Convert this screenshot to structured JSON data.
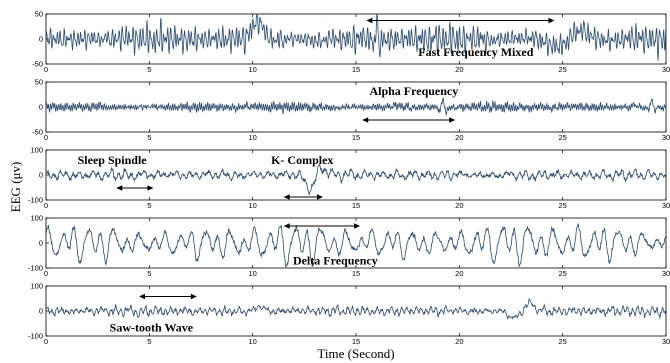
{
  "chart_data": {
    "type": "line",
    "xlabel": "Time (Second)",
    "ylabel": "EEG (μv)",
    "line_color": "#2a4a6e",
    "x_ticks": [
      0,
      5,
      10,
      15,
      20,
      25,
      30
    ],
    "xlim": [
      0,
      30
    ],
    "panels": [
      {
        "id": "fast",
        "ylim": [
          -50,
          50
        ],
        "y_ticks": [
          "50",
          "0",
          "-50"
        ],
        "annotations": [
          {
            "label": "Fast Frequency Mixed",
            "x": 20.8,
            "y": -26,
            "arrow": [
              15.5,
              24.6
            ],
            "arrow_y": 37
          }
        ],
        "signal": {
          "amp": 16,
          "components": [
            [
              6.0,
              0.0,
              1.0
            ],
            [
              9.0,
              1.3,
              0.7
            ],
            [
              4.3,
              2.1,
              0.5
            ]
          ],
          "noise": 0.35,
          "seed": 3,
          "events": [
            {
              "t": 10.2,
              "w": 0.35,
              "a": 38
            },
            {
              "t": 16.0,
              "w": 0.2,
              "a": 30
            }
          ],
          "slow": {
            "t": 25.3,
            "w": 1.3,
            "a": 22
          }
        }
      },
      {
        "id": "alpha",
        "ylim": [
          -50,
          50
        ],
        "y_ticks": [
          "50",
          "0",
          "-50"
        ],
        "annotations": [
          {
            "label": "Alpha Frequency",
            "x": 17.8,
            "y": 32,
            "arrow": [
              15.3,
              19.8
            ],
            "arrow_y": -26
          }
        ],
        "signal": {
          "amp": 7,
          "components": [
            [
              10.0,
              0.0,
              1.0
            ],
            [
              3.1,
              0.8,
              0.4
            ]
          ],
          "noise": 0.45,
          "seed": 7,
          "events": [
            {
              "t": 19.2,
              "w": 0.25,
              "a": 18
            },
            {
              "t": 29.3,
              "w": 0.2,
              "a": 15
            }
          ]
        }
      },
      {
        "id": "spindle",
        "ylim": [
          -100,
          100
        ],
        "y_ticks": [
          "100",
          "0",
          "-100"
        ],
        "annotations": [
          {
            "label": "Sleep Spindle",
            "x": 3.2,
            "y": 60,
            "arrow": [
              3.4,
              5.2
            ],
            "arrow_y": -52
          },
          {
            "label": "K- Complex",
            "x": 12.4,
            "y": 60,
            "arrow": [
              11.5,
              13.4
            ],
            "arrow_y": -88
          }
        ],
        "signal": {
          "amp": 12,
          "components": [
            [
              3.2,
              0.0,
              1.0
            ],
            [
              1.3,
              1.1,
              0.8
            ],
            [
              13.0,
              0.4,
              0.4
            ]
          ],
          "noise": 0.5,
          "seed": 11,
          "events": [
            {
              "t": 12.8,
              "w": 0.35,
              "a": -55
            },
            {
              "t": 13.3,
              "w": 0.3,
              "a": 35
            }
          ]
        }
      },
      {
        "id": "delta",
        "ylim": [
          -100,
          100
        ],
        "y_ticks": [
          "100",
          "0",
          "-100"
        ],
        "annotations": [
          {
            "label": "Delta Frequency",
            "x": 14.0,
            "y": -70,
            "arrow": [
              11.5,
              15.2
            ],
            "arrow_y": 68
          }
        ],
        "signal": {
          "amp": 45,
          "components": [
            [
              1.6,
              0.0,
              1.0
            ],
            [
              0.9,
              1.4,
              0.8
            ],
            [
              2.3,
              0.7,
              0.5
            ],
            [
              11.0,
              0.2,
              0.12
            ]
          ],
          "noise": 0.18,
          "seed": 19,
          "events": []
        }
      },
      {
        "id": "sawtooth",
        "ylim": [
          -100,
          100
        ],
        "y_ticks": [
          "100",
          "0",
          "-100"
        ],
        "annotations": [
          {
            "label": "Saw-tooth Wave",
            "x": 5.1,
            "y": -66,
            "arrow": [
              4.5,
              7.3
            ],
            "arrow_y": 58
          }
        ],
        "signal": {
          "amp": 12,
          "components": [
            [
              4.2,
              0.0,
              1.0
            ],
            [
              1.5,
              1.1,
              0.6
            ],
            [
              11.0,
              0.3,
              0.3
            ]
          ],
          "noise": 0.5,
          "seed": 23,
          "events": [
            {
              "t": 22.6,
              "w": 0.35,
              "a": -28
            },
            {
              "t": 23.4,
              "w": 0.3,
              "a": 30
            },
            {
              "t": 10.4,
              "w": 0.3,
              "a": 15
            }
          ]
        }
      }
    ]
  }
}
